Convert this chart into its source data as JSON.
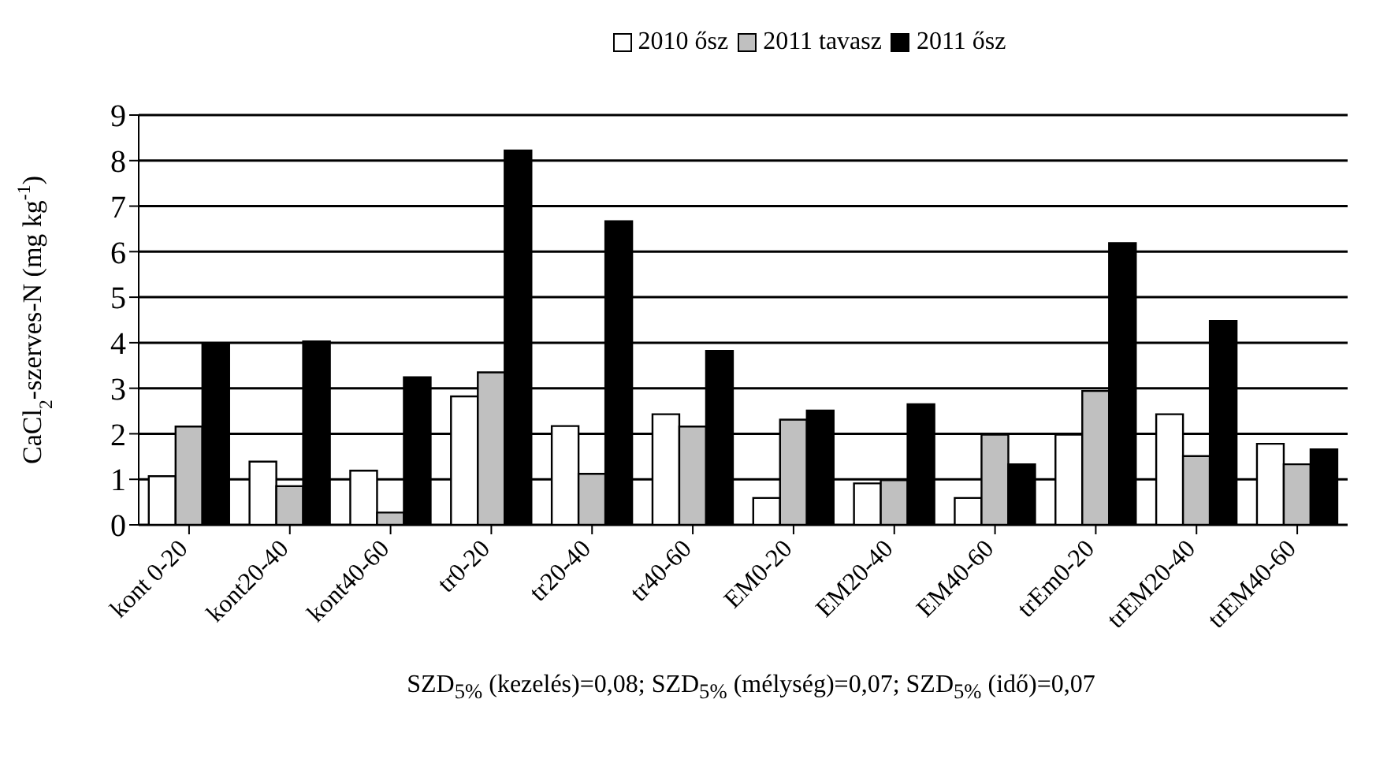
{
  "chart_data": {
    "type": "bar",
    "ylabel": "CaCl$_{2}$-szerves-N (mg kg$^{-1}$)",
    "categories": [
      "kont 0-20",
      "kont20-40",
      "kont40-60",
      "tr0-20",
      "tr20-40",
      "tr40-60",
      "EM0-20",
      "EM20-40",
      "EM40-60",
      "trEm0-20",
      "trEM20-40",
      "trEM40-60"
    ],
    "series": [
      {
        "name": "2010 ősz",
        "color": "#ffffff",
        "values": [
          1.07,
          1.39,
          1.19,
          2.82,
          2.17,
          2.43,
          0.59,
          0.91,
          0.59,
          1.98,
          2.43,
          1.78
        ]
      },
      {
        "name": "2011 tavasz",
        "color": "#c0c0c0",
        "values": [
          2.16,
          0.85,
          0.27,
          3.35,
          1.12,
          2.16,
          2.31,
          0.98,
          1.98,
          2.94,
          1.51,
          1.33
        ]
      },
      {
        "name": "2011 ősz",
        "color": "#000000",
        "values": [
          3.97,
          4.03,
          3.24,
          8.22,
          6.67,
          3.82,
          2.51,
          2.65,
          1.33,
          6.19,
          4.48,
          1.66
        ]
      }
    ],
    "ylim": [
      0,
      9
    ],
    "yticks": [
      0,
      1,
      2,
      3,
      4,
      5,
      6,
      7,
      8,
      9
    ],
    "grid": "y",
    "legend": "top",
    "annotations": [
      "SZD$_{5%}$ (kezelés)=0,08; SZD$_{5%}$ (mélység)=0,07; SZD$_{5%}$ (idő)=0,07"
    ]
  }
}
